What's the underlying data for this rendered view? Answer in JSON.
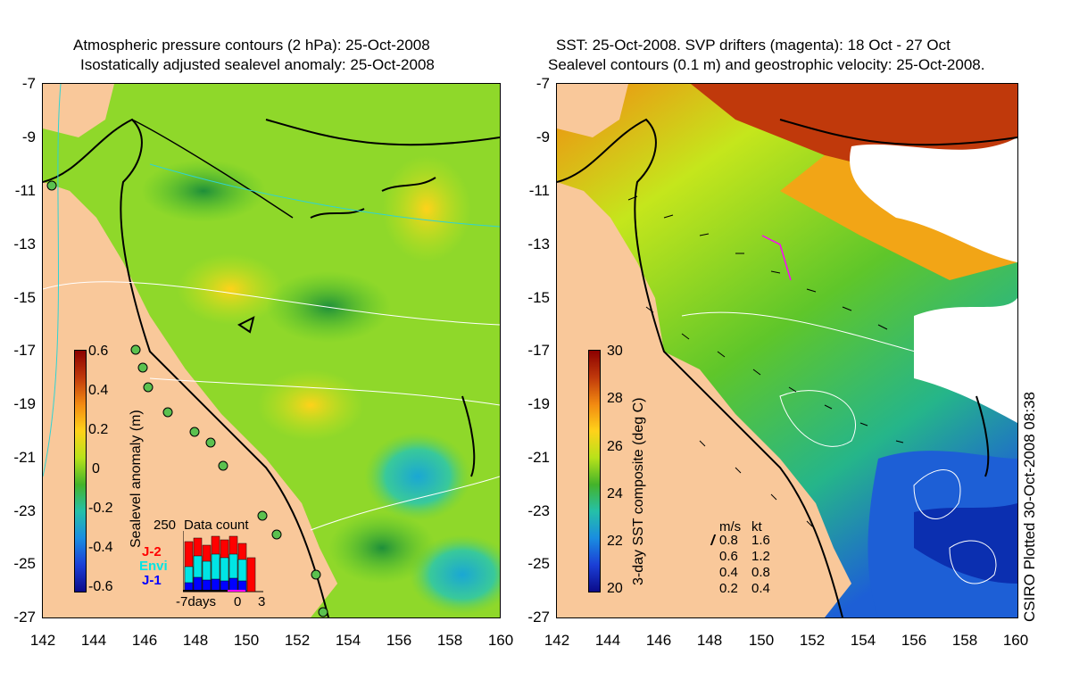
{
  "left_panel": {
    "title_line1": "Atmospheric pressure contours (2 hPa): 25-Oct-2008",
    "title_line2": "Isostatically adjusted sealevel anomaly: 25-Oct-2008",
    "colorbar": {
      "label": "Sealevel anomaly (m)",
      "ticks": [
        "0.6",
        "0.4",
        "0.2",
        "0",
        "-0.2",
        "-0.4",
        "-0.6"
      ],
      "range": [
        -0.6,
        0.6
      ]
    },
    "data_count": {
      "title": "Data count",
      "max_label": "250",
      "x_labels": [
        "-7days",
        "0",
        "3"
      ],
      "legend": [
        {
          "name": "J-2",
          "color": "#ff0000"
        },
        {
          "name": "Envi",
          "color": "#00e5e5"
        },
        {
          "name": "J-1",
          "color": "#0000ff"
        }
      ]
    }
  },
  "right_panel": {
    "title_line1": "SST: 25-Oct-2008. SVP drifters (magenta): 18 Oct - 27 Oct",
    "title_line2": "Sealevel contours (0.1 m) and geostrophic velocity: 25-Oct-2008.",
    "colorbar": {
      "label": "3-day SST composite (deg C)",
      "ticks": [
        "30",
        "28",
        "26",
        "24",
        "22",
        "20"
      ],
      "range": [
        20,
        30
      ]
    },
    "velocity_key": {
      "header_ms": "m/s",
      "header_kt": "kt",
      "rows": [
        {
          "ms": "0.8",
          "kt": "1.6"
        },
        {
          "ms": "0.6",
          "kt": "1.2"
        },
        {
          "ms": "0.4",
          "kt": "0.8"
        },
        {
          "ms": "0.2",
          "kt": "0.4"
        }
      ]
    }
  },
  "axes": {
    "lat_ticks": [
      "-7",
      "-9",
      "-11",
      "-13",
      "-15",
      "-17",
      "-19",
      "-21",
      "-23",
      "-25",
      "-27"
    ],
    "lon_ticks": [
      "142",
      "144",
      "146",
      "148",
      "150",
      "152",
      "154",
      "156",
      "158",
      "160"
    ]
  },
  "credit": "CSIRO Plotted 30-Oct-2008 08:38",
  "colors": {
    "land": "#f9c89a",
    "ocean_green": "#7ed321",
    "sst_warm": "#c0390b",
    "sst_cool": "#1d5fd6"
  }
}
